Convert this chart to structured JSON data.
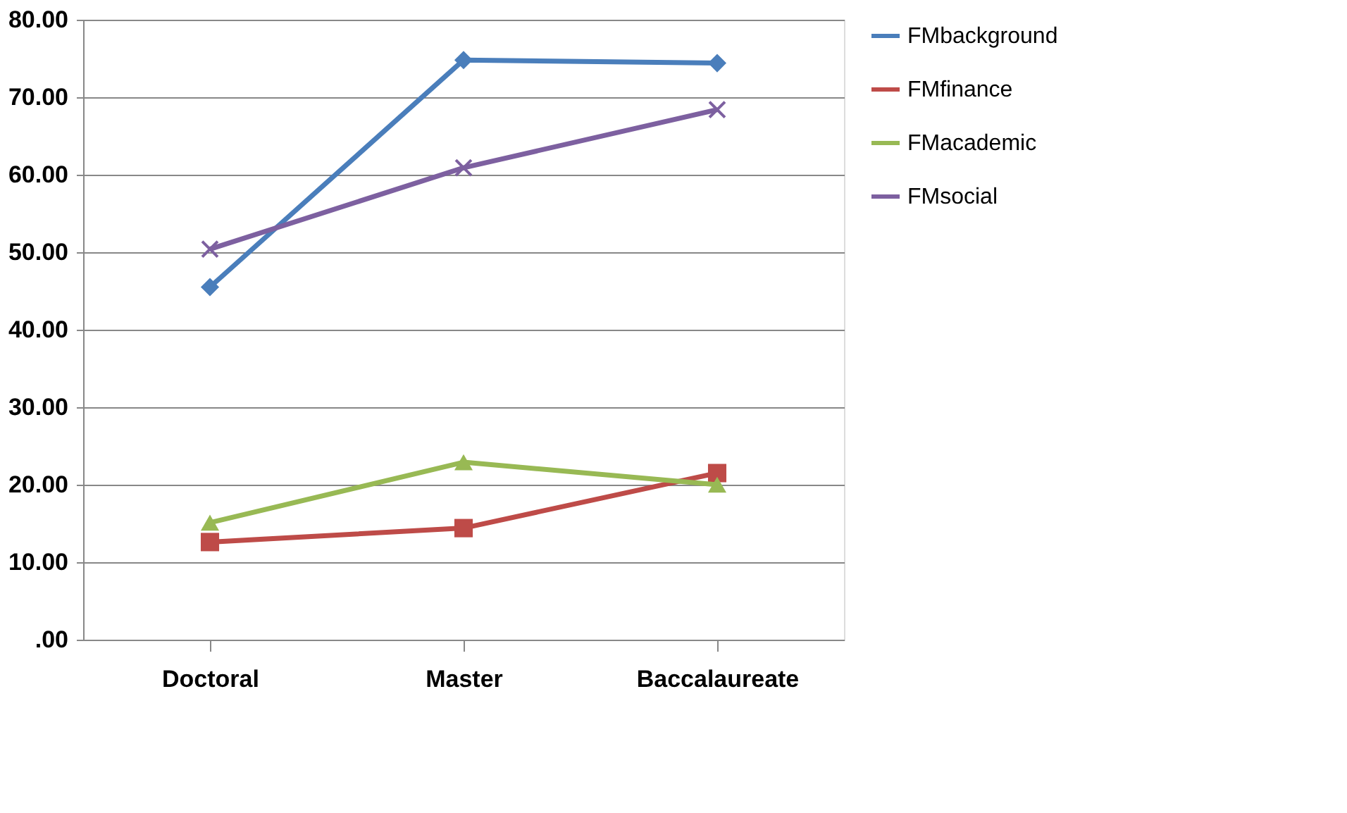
{
  "chart_data": {
    "type": "line",
    "categories": [
      "Doctoral",
      "Master",
      "Baccalaureate"
    ],
    "series": [
      {
        "name": "FMbackground",
        "color": "#4a7ebb",
        "marker": "diamond",
        "values": [
          45.5,
          74.8,
          74.4
        ]
      },
      {
        "name": "FMfinance",
        "color": "#be4b48",
        "marker": "square",
        "values": [
          12.6,
          14.4,
          21.5
        ]
      },
      {
        "name": "FMacademic",
        "color": "#98b954",
        "marker": "triangle",
        "values": [
          15.1,
          22.9,
          20.0
        ]
      },
      {
        "name": "FMsocial",
        "color": "#7d60a0",
        "marker": "cross",
        "values": [
          50.4,
          60.9,
          68.4
        ]
      }
    ],
    "ylim": [
      0,
      80
    ],
    "yticks": [
      {
        "value": 0,
        "label": ".00"
      },
      {
        "value": 10,
        "label": "10.00"
      },
      {
        "value": 20,
        "label": "20.00"
      },
      {
        "value": 30,
        "label": "30.00"
      },
      {
        "value": 40,
        "label": "40.00"
      },
      {
        "value": 50,
        "label": "50.00"
      },
      {
        "value": 60,
        "label": "60.00"
      },
      {
        "value": 70,
        "label": "70.00"
      },
      {
        "value": 80,
        "label": "80.00"
      }
    ],
    "grid": "y",
    "legend": "right",
    "line_style": "solid"
  }
}
